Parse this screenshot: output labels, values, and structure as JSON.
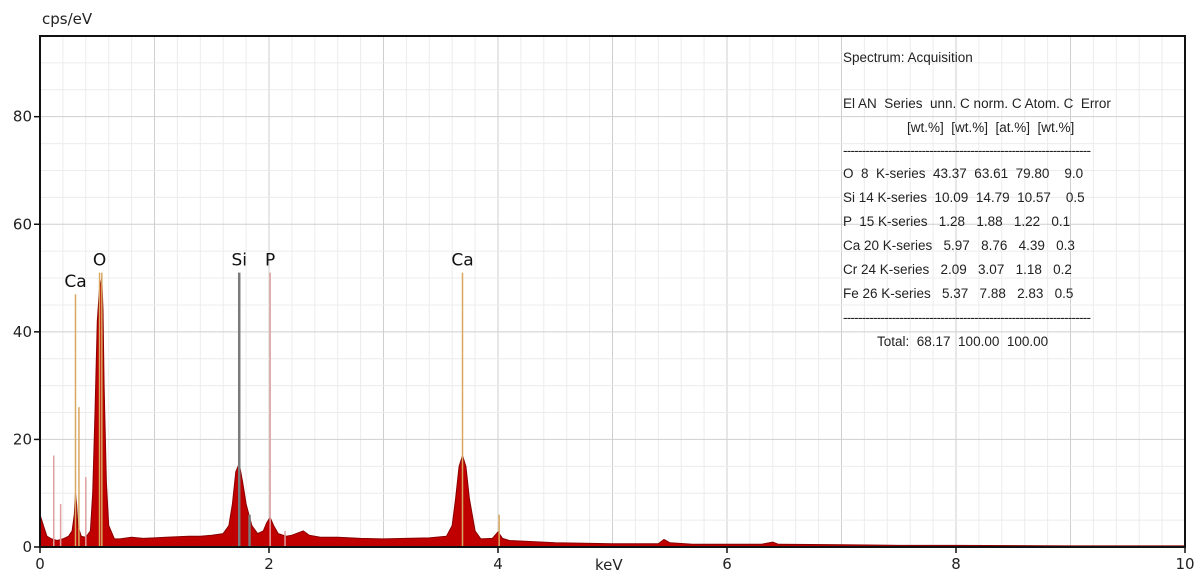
{
  "chart_data": {
    "type": "area",
    "ylabel": "cps/eV",
    "xlabel": "keV",
    "xlim": [
      0,
      10
    ],
    "ylim": [
      0,
      95
    ],
    "x_ticks": [
      "0",
      "2",
      "4",
      "6",
      "8",
      "10"
    ],
    "y_ticks": [
      "0",
      "20",
      "40",
      "60",
      "80"
    ],
    "grid": true,
    "colors": {
      "spectrum_fill": "#c00000",
      "spectrum_edge": "#8a0000",
      "line_marker": "#d9a860",
      "line_marker_dark": "#7a7a7a",
      "line_marker_pink": "#e0a0a0"
    },
    "peak_labels": [
      {
        "text": "Ca",
        "x": 0.31,
        "y": 48
      },
      {
        "text": "O",
        "x": 0.52,
        "y": 52
      },
      {
        "text": "Si",
        "x": 1.74,
        "y": 52
      },
      {
        "text": "P",
        "x": 2.01,
        "y": 52
      },
      {
        "text": "Ca",
        "x": 3.69,
        "y": 52
      }
    ],
    "marker_lines": [
      {
        "x": 0.12,
        "y": 17,
        "color": "pink"
      },
      {
        "x": 0.18,
        "y": 8,
        "color": "pink"
      },
      {
        "x": 0.31,
        "y": 47,
        "color": "gold"
      },
      {
        "x": 0.34,
        "y": 26,
        "color": "gold"
      },
      {
        "x": 0.4,
        "y": 13,
        "color": "pink"
      },
      {
        "x": 0.52,
        "y": 51,
        "color": "gold"
      },
      {
        "x": 0.54,
        "y": 51,
        "color": "gold"
      },
      {
        "x": 1.74,
        "y": 51,
        "color": "dark"
      },
      {
        "x": 1.83,
        "y": 6,
        "color": "dark"
      },
      {
        "x": 2.01,
        "y": 51,
        "color": "pink"
      },
      {
        "x": 2.14,
        "y": 3,
        "color": "pink"
      },
      {
        "x": 3.69,
        "y": 51,
        "color": "gold"
      },
      {
        "x": 4.01,
        "y": 6,
        "color": "gold"
      }
    ],
    "series": [
      {
        "points": [
          [
            0.0,
            6
          ],
          [
            0.03,
            4
          ],
          [
            0.06,
            2
          ],
          [
            0.1,
            1.5
          ],
          [
            0.15,
            1.2
          ],
          [
            0.2,
            1.5
          ],
          [
            0.25,
            2
          ],
          [
            0.28,
            3
          ],
          [
            0.3,
            6
          ],
          [
            0.31,
            10
          ],
          [
            0.32,
            8
          ],
          [
            0.33,
            4
          ],
          [
            0.36,
            2
          ],
          [
            0.4,
            1.8
          ],
          [
            0.44,
            3
          ],
          [
            0.46,
            10
          ],
          [
            0.48,
            25
          ],
          [
            0.5,
            42
          ],
          [
            0.52,
            48
          ],
          [
            0.54,
            50
          ],
          [
            0.55,
            44
          ],
          [
            0.56,
            30
          ],
          [
            0.58,
            12
          ],
          [
            0.6,
            4
          ],
          [
            0.65,
            1.5
          ],
          [
            0.7,
            1.5
          ],
          [
            0.8,
            1.8
          ],
          [
            0.9,
            1.6
          ],
          [
            1.0,
            1.7
          ],
          [
            1.1,
            1.8
          ],
          [
            1.2,
            1.9
          ],
          [
            1.3,
            2.0
          ],
          [
            1.4,
            2.0
          ],
          [
            1.5,
            2.2
          ],
          [
            1.6,
            2.5
          ],
          [
            1.65,
            4
          ],
          [
            1.68,
            8
          ],
          [
            1.71,
            14
          ],
          [
            1.74,
            15.5
          ],
          [
            1.77,
            12
          ],
          [
            1.8,
            8
          ],
          [
            1.85,
            4
          ],
          [
            1.9,
            2.5
          ],
          [
            1.95,
            3
          ],
          [
            1.98,
            4.5
          ],
          [
            2.01,
            5.5
          ],
          [
            2.04,
            4
          ],
          [
            2.08,
            2.5
          ],
          [
            2.15,
            2
          ],
          [
            2.2,
            2.2
          ],
          [
            2.3,
            3
          ],
          [
            2.35,
            2.2
          ],
          [
            2.45,
            1.8
          ],
          [
            2.6,
            1.8
          ],
          [
            2.8,
            1.6
          ],
          [
            3.0,
            1.5
          ],
          [
            3.2,
            1.6
          ],
          [
            3.4,
            1.7
          ],
          [
            3.55,
            2
          ],
          [
            3.6,
            4
          ],
          [
            3.63,
            9
          ],
          [
            3.66,
            15
          ],
          [
            3.69,
            17
          ],
          [
            3.72,
            15
          ],
          [
            3.75,
            9
          ],
          [
            3.8,
            3
          ],
          [
            3.85,
            1.5
          ],
          [
            3.95,
            1.6
          ],
          [
            4.0,
            2.8
          ],
          [
            4.04,
            1.6
          ],
          [
            4.1,
            1.2
          ],
          [
            4.3,
            1.0
          ],
          [
            4.5,
            0.8
          ],
          [
            5.0,
            0.6
          ],
          [
            5.4,
            0.6
          ],
          [
            5.45,
            1.4
          ],
          [
            5.5,
            0.8
          ],
          [
            5.7,
            0.5
          ],
          [
            6.0,
            0.5
          ],
          [
            6.3,
            0.5
          ],
          [
            6.4,
            0.9
          ],
          [
            6.45,
            0.5
          ],
          [
            7.0,
            0.4
          ],
          [
            7.5,
            0.3
          ],
          [
            8.0,
            0.3
          ],
          [
            9.0,
            0.2
          ],
          [
            10.0,
            0.2
          ]
        ]
      }
    ]
  },
  "results_table": {
    "title": "Spectrum: Acquisition",
    "header_line1": "El AN  Series  unn. C norm. C Atom. C  Error",
    "header_line2": "[wt.%]  [wt.%]  [at.%]  [wt.%]",
    "separator": "------------------------------------------------------------------",
    "rows": [
      "O  8  K-series  43.37  63.61  79.80    9.0",
      "Si 14 K-series  10.09  14.79  10.57    0.5",
      "P  15 K-series   1.28   1.88   1.22   0.1",
      "Ca 20 K-series   5.97   8.76   4.39   0.3",
      "Cr 24 K-series   2.09   3.07   1.18   0.2",
      "Fe 26 K-series   5.37   7.88   2.83   0.5"
    ],
    "total": "Total:  68.17  100.00  100.00"
  }
}
